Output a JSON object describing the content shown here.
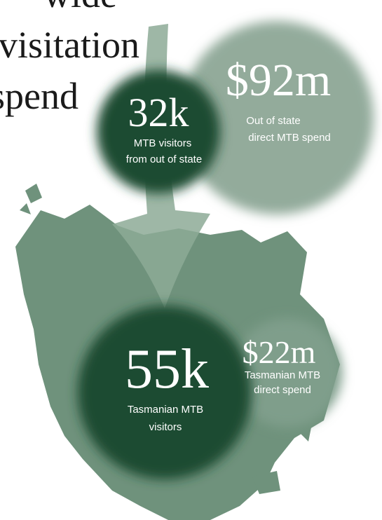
{
  "heading": {
    "lines": [
      "wide",
      "visitation",
      "spend"
    ]
  },
  "stats": [
    {
      "value": "$92m",
      "label": [
        "Out of state",
        "direct MTB spend"
      ]
    },
    {
      "value": "32k",
      "label": [
        "MTB visitors",
        "from out of state"
      ]
    },
    {
      "value": "55k",
      "label": [
        "Tasmanian MTB",
        "visitors"
      ]
    },
    {
      "value": "$22m",
      "label": [
        "Tasmanian MTB",
        "direct spend"
      ]
    }
  ]
}
